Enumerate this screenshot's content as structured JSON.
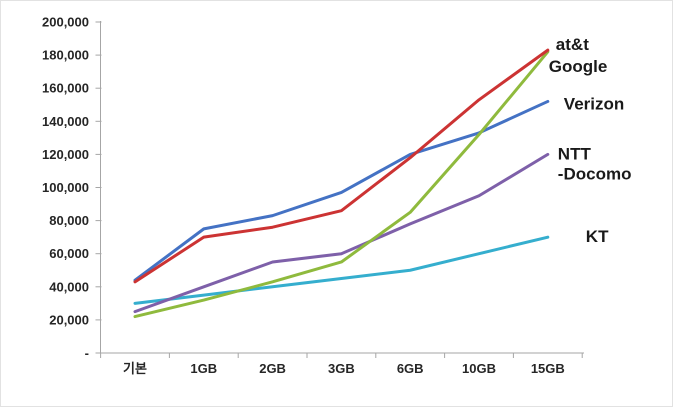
{
  "chart_data": {
    "type": "line",
    "title": "",
    "categories": [
      "기본",
      "1GB",
      "2GB",
      "3GB",
      "6GB",
      "10GB",
      "15GB"
    ],
    "series": [
      {
        "key": "att",
        "name": "at&t",
        "color": "#CC3333",
        "label_lines": [
          "at&t"
        ],
        "values": [
          43000,
          70000,
          76000,
          86000,
          118000,
          153000,
          183000
        ]
      },
      {
        "key": "google",
        "name": "Google",
        "color": "#8FBA3D",
        "label_lines": [
          "Google"
        ],
        "values": [
          22000,
          32000,
          43000,
          55000,
          85000,
          132000,
          182000
        ]
      },
      {
        "key": "verizon",
        "name": "Verizon",
        "color": "#4472C4",
        "label_lines": [
          "Verizon"
        ],
        "values": [
          44000,
          75000,
          83000,
          97000,
          120000,
          133000,
          152000
        ]
      },
      {
        "key": "ntt-docomo",
        "name": "NTT-Docomo",
        "color": "#7E60A9",
        "label_lines": [
          "NTT",
          "-Docomo"
        ],
        "values": [
          25000,
          40000,
          55000,
          60000,
          78000,
          95000,
          120000
        ]
      },
      {
        "key": "kt",
        "name": "KT",
        "color": "#35AECE",
        "label_lines": [
          "KT"
        ],
        "values": [
          30000,
          35000,
          40000,
          45000,
          50000,
          60000,
          70000
        ]
      }
    ],
    "y_axis": {
      "min": 0,
      "max": 200000,
      "step": 20000,
      "tick_labels": [
        "-",
        "20,000",
        "40,000",
        "60,000",
        "80,000",
        "100,000",
        "120,000",
        "140,000",
        "160,000",
        "180,000",
        "200,000"
      ]
    },
    "x_axis": {
      "labels": [
        "기본",
        "1GB",
        "2GB",
        "3GB",
        "6GB",
        "10GB",
        "15GB"
      ]
    },
    "grid": false,
    "legend_position": "labels-at-line-ends",
    "axis_color": "#A6A6A6",
    "label_color": "#262626"
  }
}
